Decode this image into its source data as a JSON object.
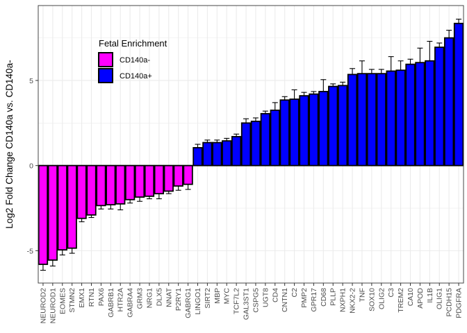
{
  "chart_data": {
    "type": "bar",
    "title": "",
    "xlabel": "",
    "ylabel": "Log2 Fold Change CD140a vs. CD140a-",
    "ylim": [
      -6.9,
      9.4
    ],
    "yticks": [
      -5,
      0,
      5
    ],
    "grid": true,
    "legend": {
      "title": "Fetal Enrichment",
      "placement": "top-left (inside plot)",
      "entries": [
        {
          "label": "CD140a-",
          "color": "#ff00ff"
        },
        {
          "label": "CD140a+",
          "color": "#0000ff"
        }
      ]
    },
    "categories": [
      "NEUROD2",
      "NEUROD1",
      "EOMES",
      "STMN2",
      "EMX1",
      "RTN1",
      "PAX6",
      "GABRB1",
      "HTR2A",
      "GABRA4",
      "GRM3",
      "NRG1",
      "DLX5",
      "NNAT",
      "P2RY1",
      "GABRG1",
      "LINGO1",
      "SIRT2",
      "MBP",
      "MYC",
      "TCF7L2",
      "GAL3ST1",
      "CSPG5",
      "UGT8",
      "CD4",
      "CNTN1",
      "C2",
      "PMP2",
      "GPR17",
      "CD68",
      "PLLP",
      "NXPH1",
      "NKX2-2",
      "TNF",
      "SOX10",
      "OLIG2",
      "C3",
      "TREM2",
      "CA10",
      "APOD",
      "IL1B",
      "OLIG1",
      "PCDH15",
      "PDGFRA"
    ],
    "values": [
      -5.8,
      -5.55,
      -4.95,
      -4.85,
      -3.1,
      -2.9,
      -2.35,
      -2.3,
      -2.25,
      -2.0,
      -1.85,
      -1.8,
      -1.65,
      -1.5,
      -1.2,
      -1.1,
      1.05,
      1.35,
      1.35,
      1.45,
      1.7,
      2.5,
      2.6,
      3.05,
      3.25,
      3.85,
      3.9,
      4.1,
      4.2,
      4.35,
      4.65,
      4.7,
      5.35,
      5.4,
      5.4,
      5.4,
      5.55,
      5.6,
      5.95,
      6.05,
      6.15,
      6.95,
      7.5,
      8.35
    ],
    "errors": [
      0.35,
      0.35,
      0.3,
      0.3,
      0.2,
      0.15,
      0.2,
      0.25,
      0.35,
      0.2,
      0.25,
      0.15,
      0.3,
      0.15,
      0.25,
      0.3,
      0.2,
      0.15,
      0.15,
      0.15,
      0.15,
      0.25,
      0.2,
      0.15,
      0.45,
      0.2,
      0.55,
      0.2,
      0.15,
      0.7,
      0.15,
      0.2,
      0.35,
      0.75,
      0.25,
      0.25,
      0.85,
      0.55,
      0.3,
      0.85,
      1.15,
      0.25,
      0.45,
      0.25
    ],
    "group_colors": {
      "negative": "#ff00ff",
      "positive": "#0000ff"
    }
  }
}
